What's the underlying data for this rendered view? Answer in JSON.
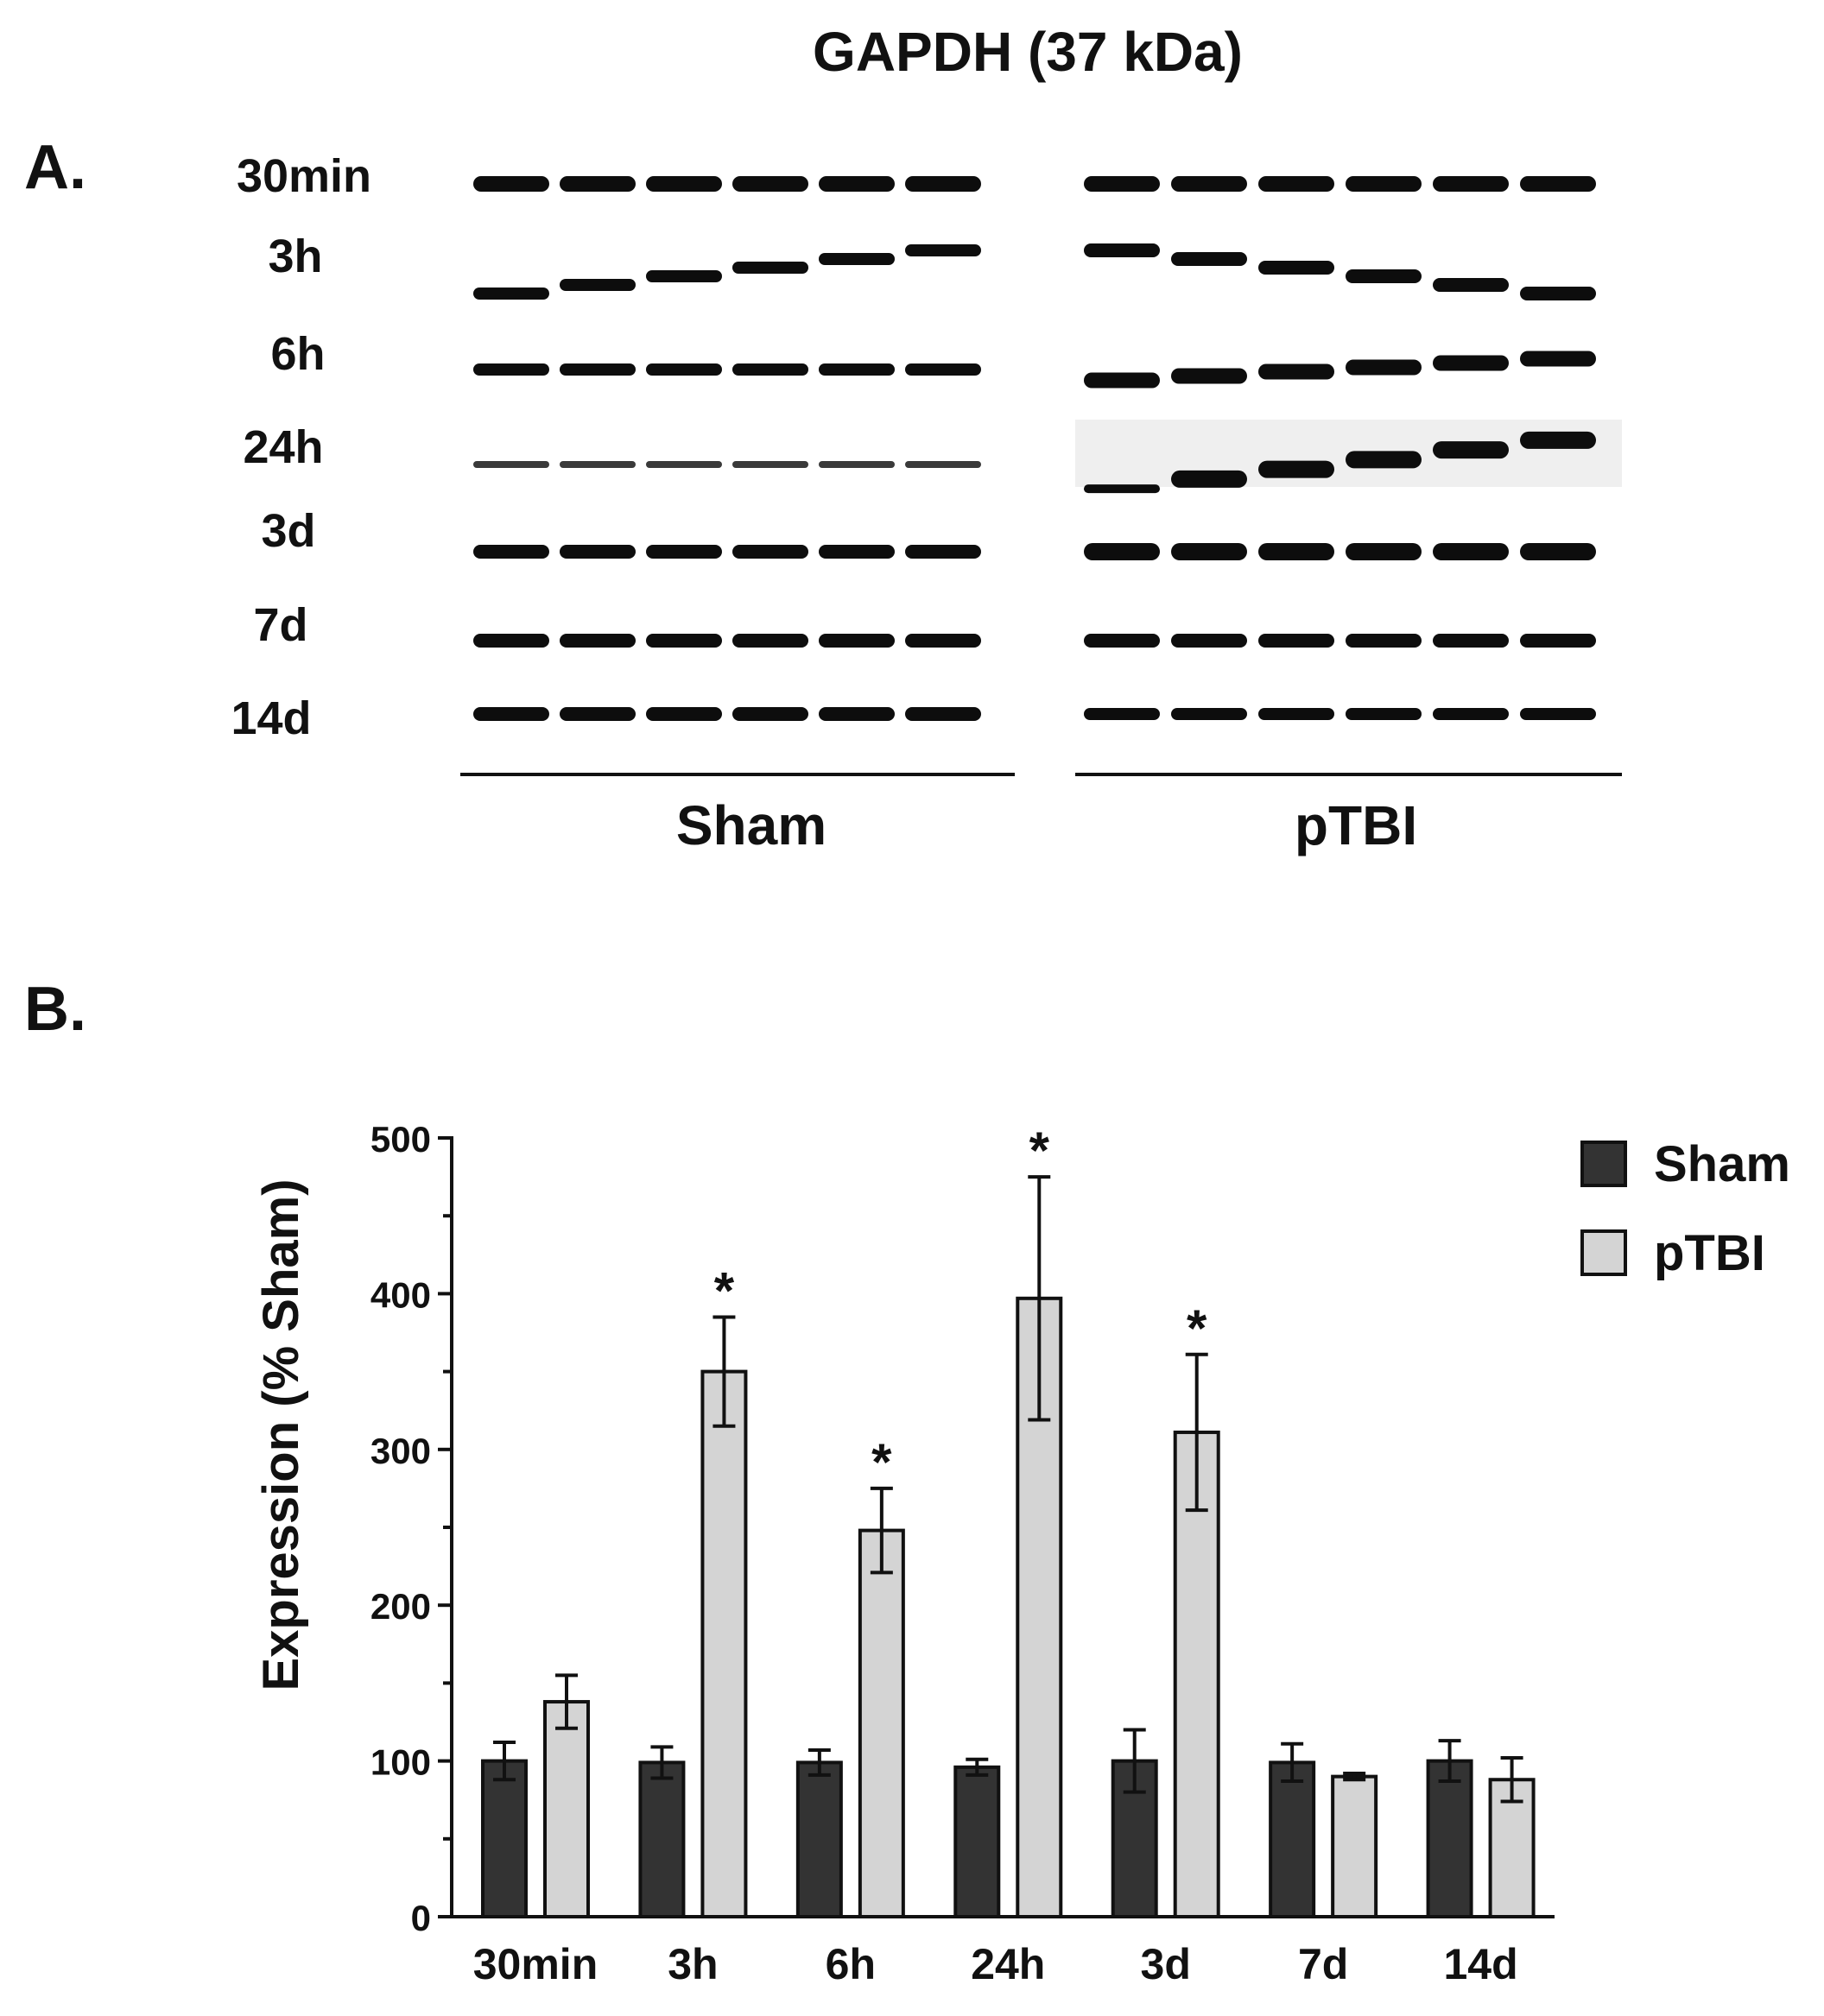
{
  "panel_a": {
    "label": "A.",
    "title": "GAPDH (37 kDa)",
    "rows": [
      "30min",
      "3h",
      "6h",
      "24h",
      "3d",
      "7d",
      "14d"
    ],
    "groups": [
      "Sham",
      "pTBI"
    ],
    "lanes_per_group": 6
  },
  "panel_b": {
    "label": "B."
  },
  "chart_data": {
    "type": "bar",
    "title": "",
    "xlabel": "",
    "ylabel": "Expression (% Sham)",
    "categories": [
      "30min",
      "3h",
      "6h",
      "24h",
      "3d",
      "7d",
      "14d"
    ],
    "ylim": [
      0,
      500
    ],
    "yticks": [
      "0",
      "100",
      "200",
      "300",
      "400",
      "500"
    ],
    "legend": "top-right",
    "grid": false,
    "significance_marker": "*",
    "series": [
      {
        "name": "Sham",
        "color": "#333333",
        "values": [
          100,
          99,
          99,
          96,
          100,
          99,
          100
        ],
        "errors": [
          12,
          10,
          8,
          5,
          20,
          12,
          13
        ],
        "significant": [
          false,
          false,
          false,
          false,
          false,
          false,
          false
        ]
      },
      {
        "name": "pTBI",
        "color": "#d4d4d4",
        "values": [
          138,
          350,
          248,
          397,
          311,
          90,
          88
        ],
        "errors": [
          17,
          35,
          27,
          78,
          50,
          2,
          14
        ],
        "significant": [
          false,
          true,
          true,
          true,
          true,
          false,
          false
        ]
      }
    ]
  }
}
